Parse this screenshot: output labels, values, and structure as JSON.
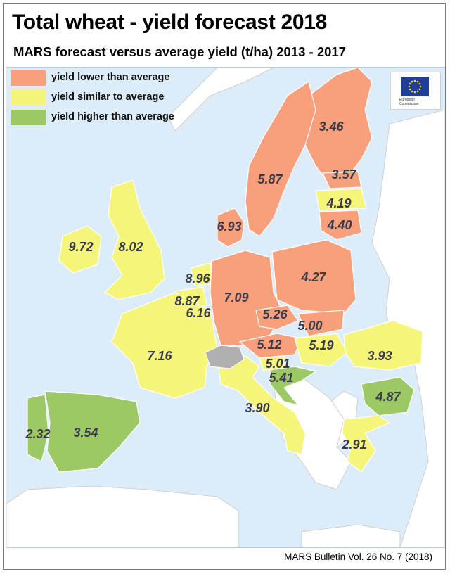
{
  "title": "Total wheat - yield forecast 2018",
  "subtitle": "MARS forecast versus average yield (t/ha) 2013 - 2017",
  "legend": [
    {
      "label": "yield lower than average",
      "color": "#f8a07c"
    },
    {
      "label": "yield similar to average",
      "color": "#f5f57a"
    },
    {
      "label": "yield higher than average",
      "color": "#9cc865"
    }
  ],
  "colors": {
    "sea": "#dcedf9",
    "non_eu": "#ffffff",
    "no_data": "#b0b0b0",
    "border": "#ffffff"
  },
  "eu_logo": {
    "text_line1": "European",
    "text_line2": "Commission",
    "icon": "eu-flag-icon"
  },
  "regions": [
    {
      "country": "Finland",
      "value": "3.46",
      "category": "lower"
    },
    {
      "country": "Sweden",
      "value": "5.87",
      "category": "lower"
    },
    {
      "country": "Estonia",
      "value": "3.57",
      "category": "lower"
    },
    {
      "country": "Latvia",
      "value": "4.19",
      "category": "similar"
    },
    {
      "country": "Lithuania",
      "value": "4.40",
      "category": "lower"
    },
    {
      "country": "Denmark",
      "value": "6.93",
      "category": "lower"
    },
    {
      "country": "Ireland",
      "value": "9.72",
      "category": "similar"
    },
    {
      "country": "United Kingdom",
      "value": "8.02",
      "category": "similar"
    },
    {
      "country": "Netherlands",
      "value": "8.96",
      "category": "similar"
    },
    {
      "country": "Belgium",
      "value": "8.87",
      "category": "similar"
    },
    {
      "country": "Luxembourg",
      "value": "6.16",
      "category": "similar"
    },
    {
      "country": "Germany",
      "value": "7.09",
      "category": "lower"
    },
    {
      "country": "Poland",
      "value": "4.27",
      "category": "lower"
    },
    {
      "country": "Czechia",
      "value": "5.26",
      "category": "lower"
    },
    {
      "country": "Slovakia",
      "value": "5.00",
      "category": "lower"
    },
    {
      "country": "Austria",
      "value": "5.12",
      "category": "lower"
    },
    {
      "country": "Hungary",
      "value": "5.19",
      "category": "similar"
    },
    {
      "country": "Slovenia",
      "value": "5.01",
      "category": "similar"
    },
    {
      "country": "Croatia",
      "value": "5.41",
      "category": "higher"
    },
    {
      "country": "Romania",
      "value": "3.93",
      "category": "similar"
    },
    {
      "country": "Bulgaria",
      "value": "4.87",
      "category": "higher"
    },
    {
      "country": "France",
      "value": "7.16",
      "category": "similar"
    },
    {
      "country": "Italy",
      "value": "3.90",
      "category": "similar"
    },
    {
      "country": "Portugal",
      "value": "2.32",
      "category": "higher"
    },
    {
      "country": "Spain",
      "value": "3.54",
      "category": "higher"
    },
    {
      "country": "Greece",
      "value": "2.91",
      "category": "similar"
    }
  ],
  "footer": "MARS Bulletin Vol. 26 No. 7 (2018)"
}
